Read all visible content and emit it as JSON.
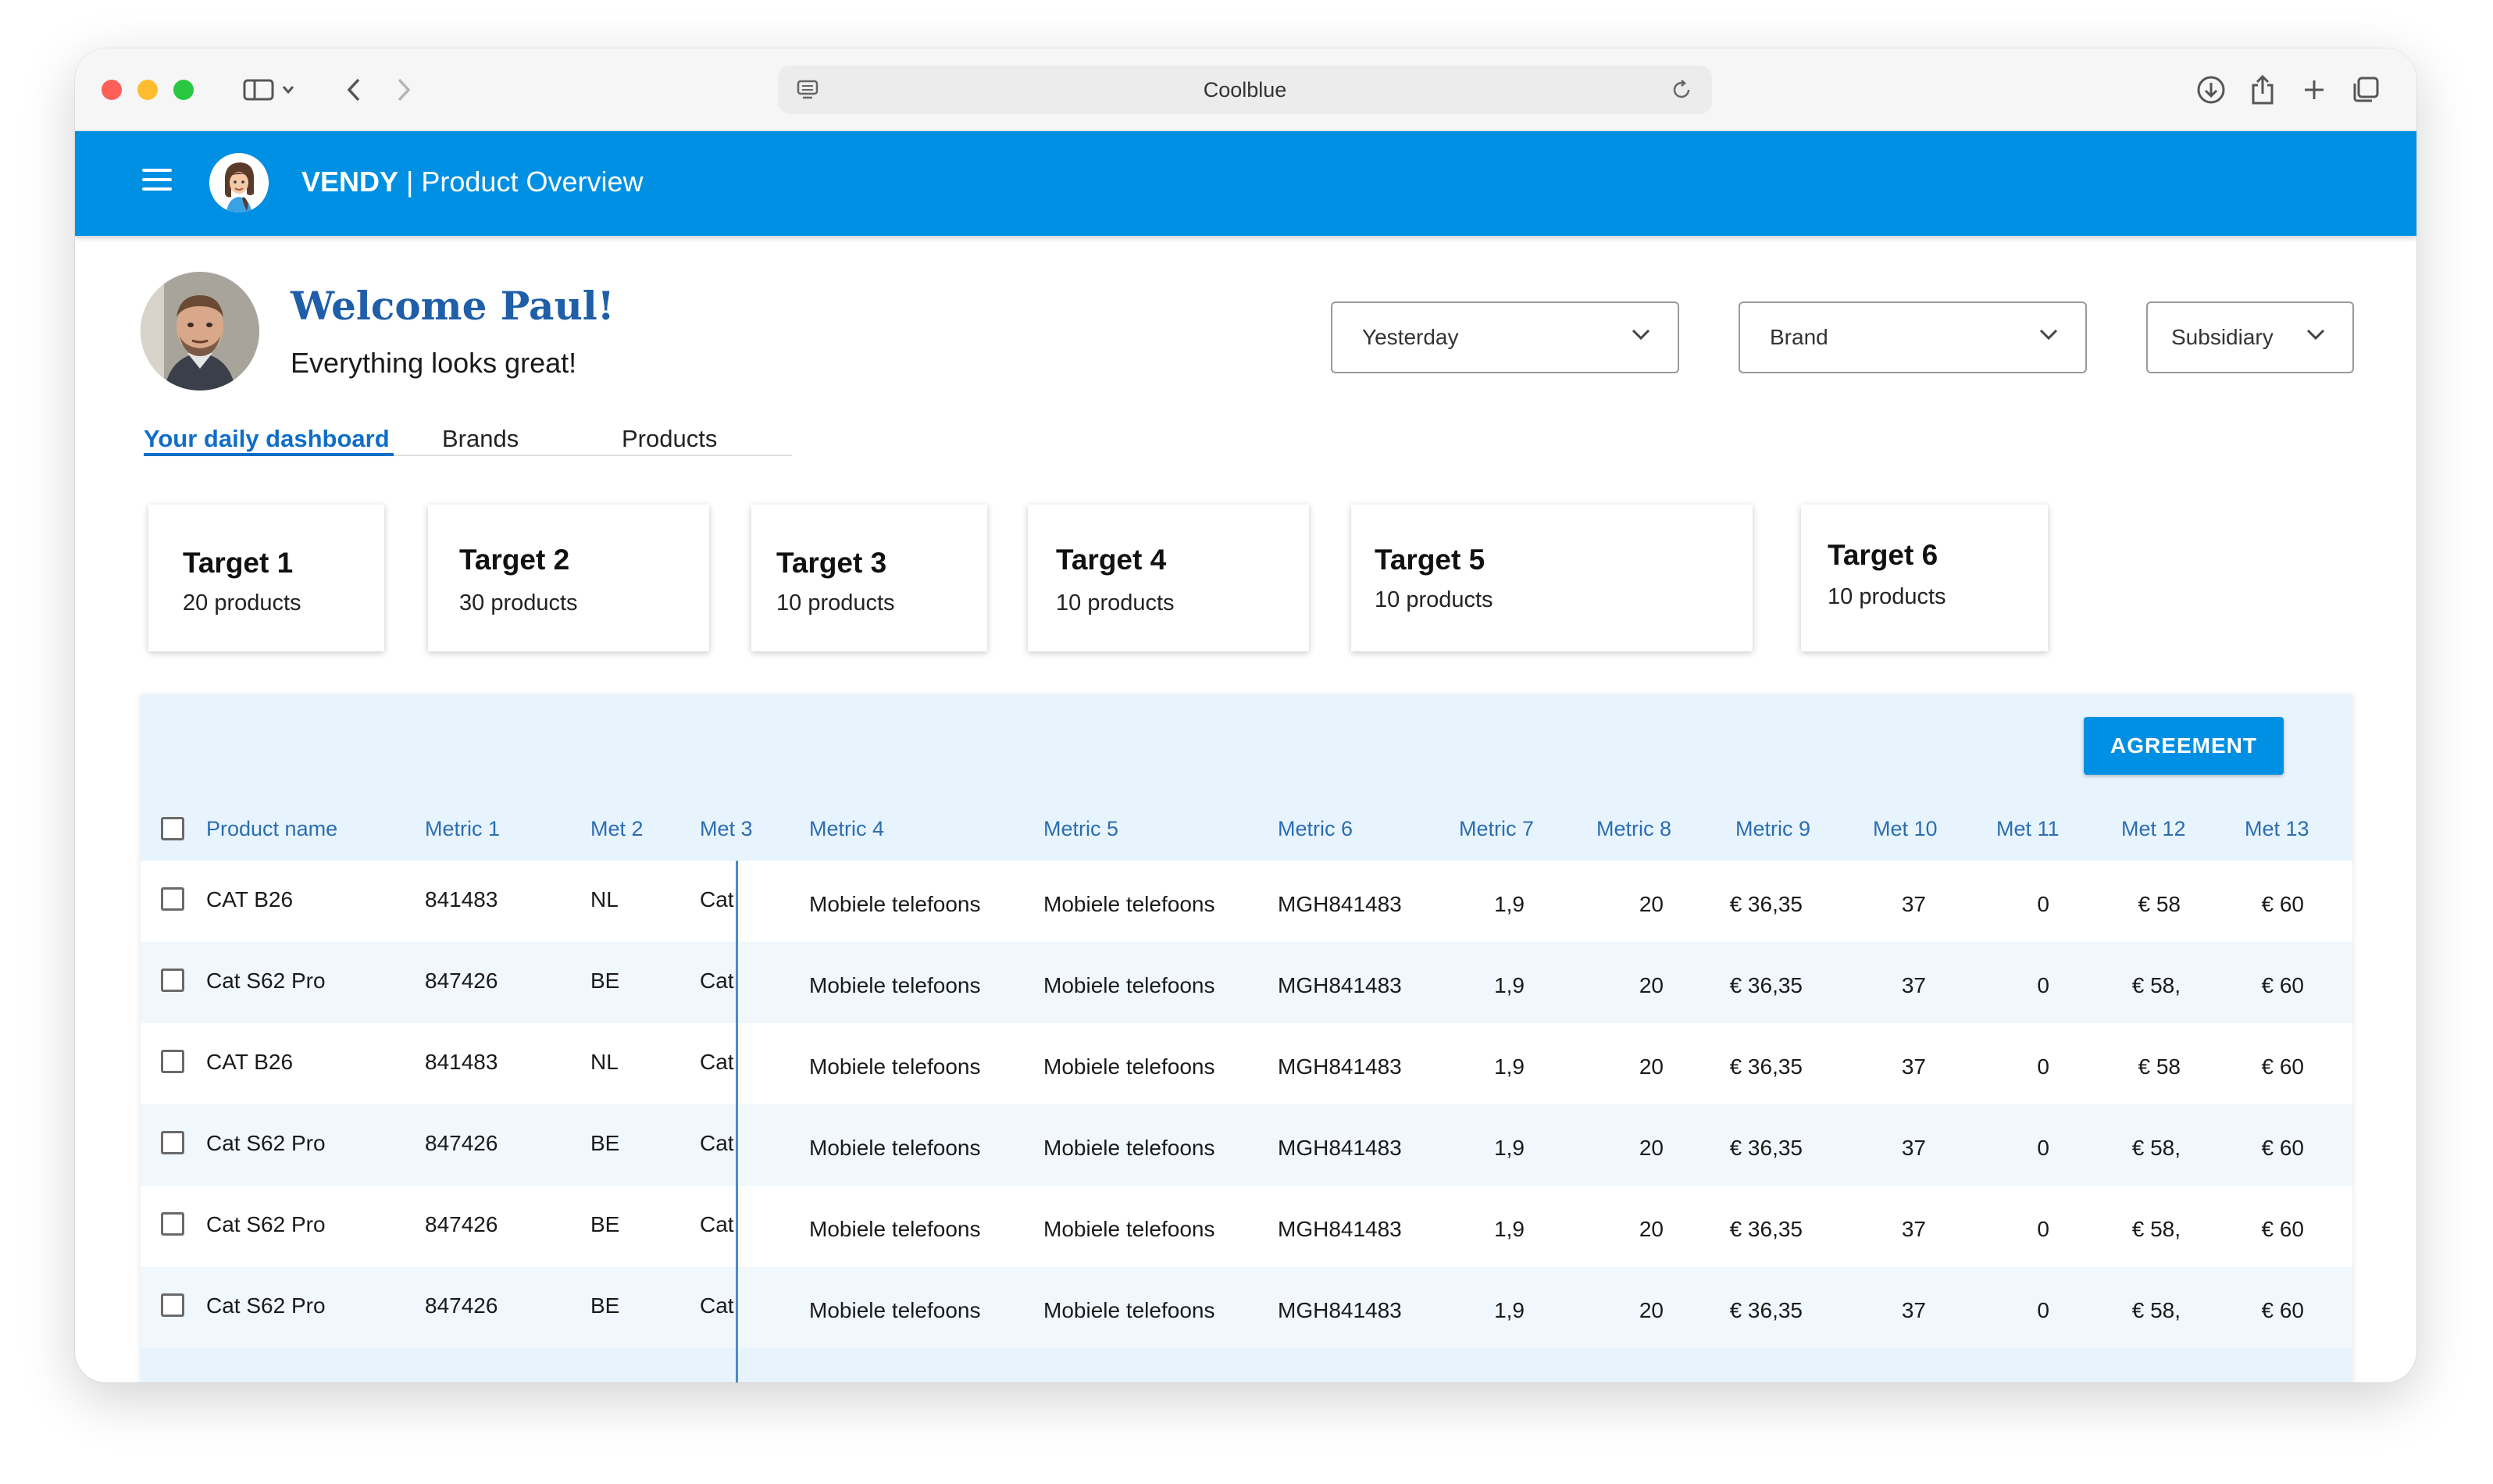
{
  "browser": {
    "address": "Coolblue"
  },
  "app": {
    "brand": "VENDY",
    "separator": " | ",
    "page": "Product Overview"
  },
  "user": {
    "greeting": "Welcome Paul!",
    "status": "Everything looks great!"
  },
  "filters": {
    "period": "Yesterday",
    "brand": "Brand",
    "subsidiary": "Subsidiary"
  },
  "tabs": [
    {
      "label": "Your daily dashboard",
      "active": true
    },
    {
      "label": "Brands",
      "active": false
    },
    {
      "label": "Products",
      "active": false
    }
  ],
  "targets": [
    {
      "title": "Target 1",
      "count": "20 products"
    },
    {
      "title": "Target 2",
      "count": "30 products"
    },
    {
      "title": "Target 3",
      "count": "10 products"
    },
    {
      "title": "Target 4",
      "count": "10 products"
    },
    {
      "title": "Target 5",
      "count": "10 products"
    },
    {
      "title": "Target 6",
      "count": "10 products"
    }
  ],
  "table": {
    "action_label": "AGREEMENT",
    "columns": [
      "Product name",
      "Metric 1",
      "Met 2",
      "Met 3",
      "Metric 4",
      "Metric 5",
      "Metric 6",
      "Metric 7",
      "Metric 8",
      "Metric 9",
      "Met 10",
      "Met 11",
      "Met 12",
      "Met 13"
    ],
    "rows": [
      [
        "CAT B26",
        "841483",
        "NL",
        "Cat",
        "Mobiele telefoons",
        "Mobiele telefoons",
        "MGH841483",
        "1,9",
        "20",
        "€ 36,35",
        "37",
        "0",
        "€ 58",
        "€ 60"
      ],
      [
        "Cat S62 Pro",
        "847426",
        "BE",
        "Cat",
        "Mobiele telefoons",
        "Mobiele telefoons",
        "MGH841483",
        "1,9",
        "20",
        "€ 36,35",
        "37",
        "0",
        "€ 58,",
        "€ 60"
      ],
      [
        " CAT B26",
        "841483",
        "NL",
        "Cat",
        "Mobiele telefoons",
        "Mobiele telefoons",
        "MGH841483",
        "1,9",
        "20",
        "€ 36,35",
        "37",
        "0",
        "€ 58",
        "€ 60"
      ],
      [
        "Cat S62 Pro",
        "847426",
        "BE",
        "Cat",
        "Mobiele telefoons",
        "Mobiele telefoons",
        "MGH841483",
        "1,9",
        "20",
        "€ 36,35",
        "37",
        "0",
        "€ 58,",
        "€ 60"
      ],
      [
        "Cat S62 Pro",
        "847426",
        "BE",
        "Cat",
        "Mobiele telefoons",
        "Mobiele telefoons",
        "MGH841483",
        "1,9",
        "20",
        "€ 36,35",
        "37",
        "0",
        "€ 58,",
        "€ 60"
      ],
      [
        "Cat S62 Pro",
        "847426",
        "BE",
        "Cat",
        "Mobiele telefoons",
        "Mobiele telefoons",
        "MGH841483",
        "1,9",
        "20",
        "€ 36,35",
        "37",
        "0",
        "€ 58,",
        "€ 60"
      ]
    ]
  },
  "colors": {
    "appbar": "#0090e3",
    "accent_text": "#2b6db2",
    "panel_bg": "#e8f4fd"
  }
}
